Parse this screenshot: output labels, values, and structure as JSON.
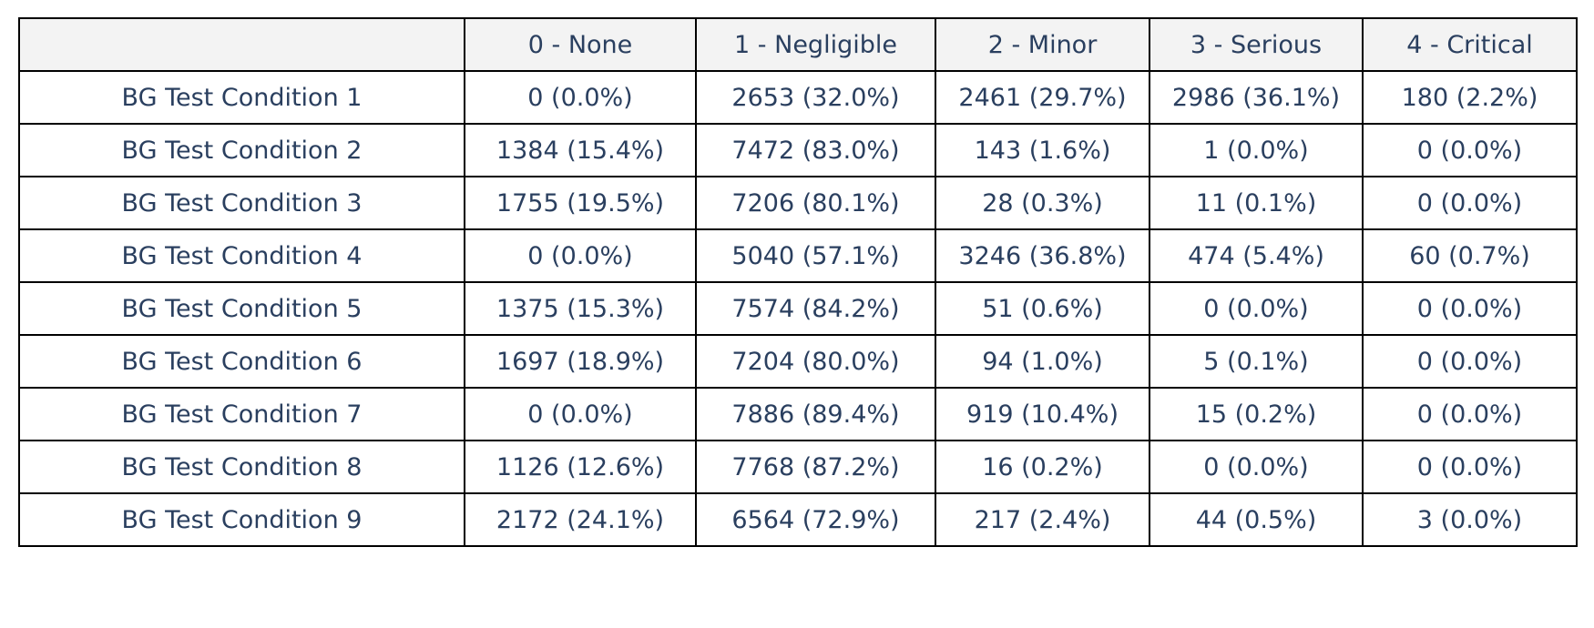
{
  "chart_data": {
    "type": "table",
    "columns": [
      "",
      "0 - None",
      "1 - Negligible",
      "2 - Minor",
      "3 - Serious",
      "4 - Critical"
    ],
    "rows": [
      [
        "BG Test Condition 1",
        "0 (0.0%)",
        "2653 (32.0%)",
        "2461 (29.7%)",
        "2986 (36.1%)",
        "180 (2.2%)"
      ],
      [
        "BG Test Condition 2",
        "1384 (15.4%)",
        "7472 (83.0%)",
        "143 (1.6%)",
        "1 (0.0%)",
        "0 (0.0%)"
      ],
      [
        "BG Test Condition 3",
        "1755 (19.5%)",
        "7206 (80.1%)",
        "28 (0.3%)",
        "11 (0.1%)",
        "0 (0.0%)"
      ],
      [
        "BG Test Condition 4",
        "0 (0.0%)",
        "5040 (57.1%)",
        "3246 (36.8%)",
        "474 (5.4%)",
        "60 (0.7%)"
      ],
      [
        "BG Test Condition 5",
        "1375 (15.3%)",
        "7574 (84.2%)",
        "51 (0.6%)",
        "0 (0.0%)",
        "0 (0.0%)"
      ],
      [
        "BG Test Condition 6",
        "1697 (18.9%)",
        "7204 (80.0%)",
        "94 (1.0%)",
        "5 (0.1%)",
        "0 (0.0%)"
      ],
      [
        "BG Test Condition 7",
        "0 (0.0%)",
        "7886 (89.4%)",
        "919 (10.4%)",
        "15 (0.2%)",
        "0 (0.0%)"
      ],
      [
        "BG Test Condition 8",
        "1126 (12.6%)",
        "7768 (87.2%)",
        "16 (0.2%)",
        "0 (0.0%)",
        "0 (0.0%)"
      ],
      [
        "BG Test Condition 9",
        "2172 (24.1%)",
        "6564 (72.9%)",
        "217 (2.4%)",
        "44 (0.5%)",
        "3 (0.0%)"
      ]
    ],
    "colors": {
      "header_fill": "#f3f3f3",
      "cell_fill": "#ffffff",
      "text": "#2a3f5f",
      "border": "#000000"
    }
  }
}
